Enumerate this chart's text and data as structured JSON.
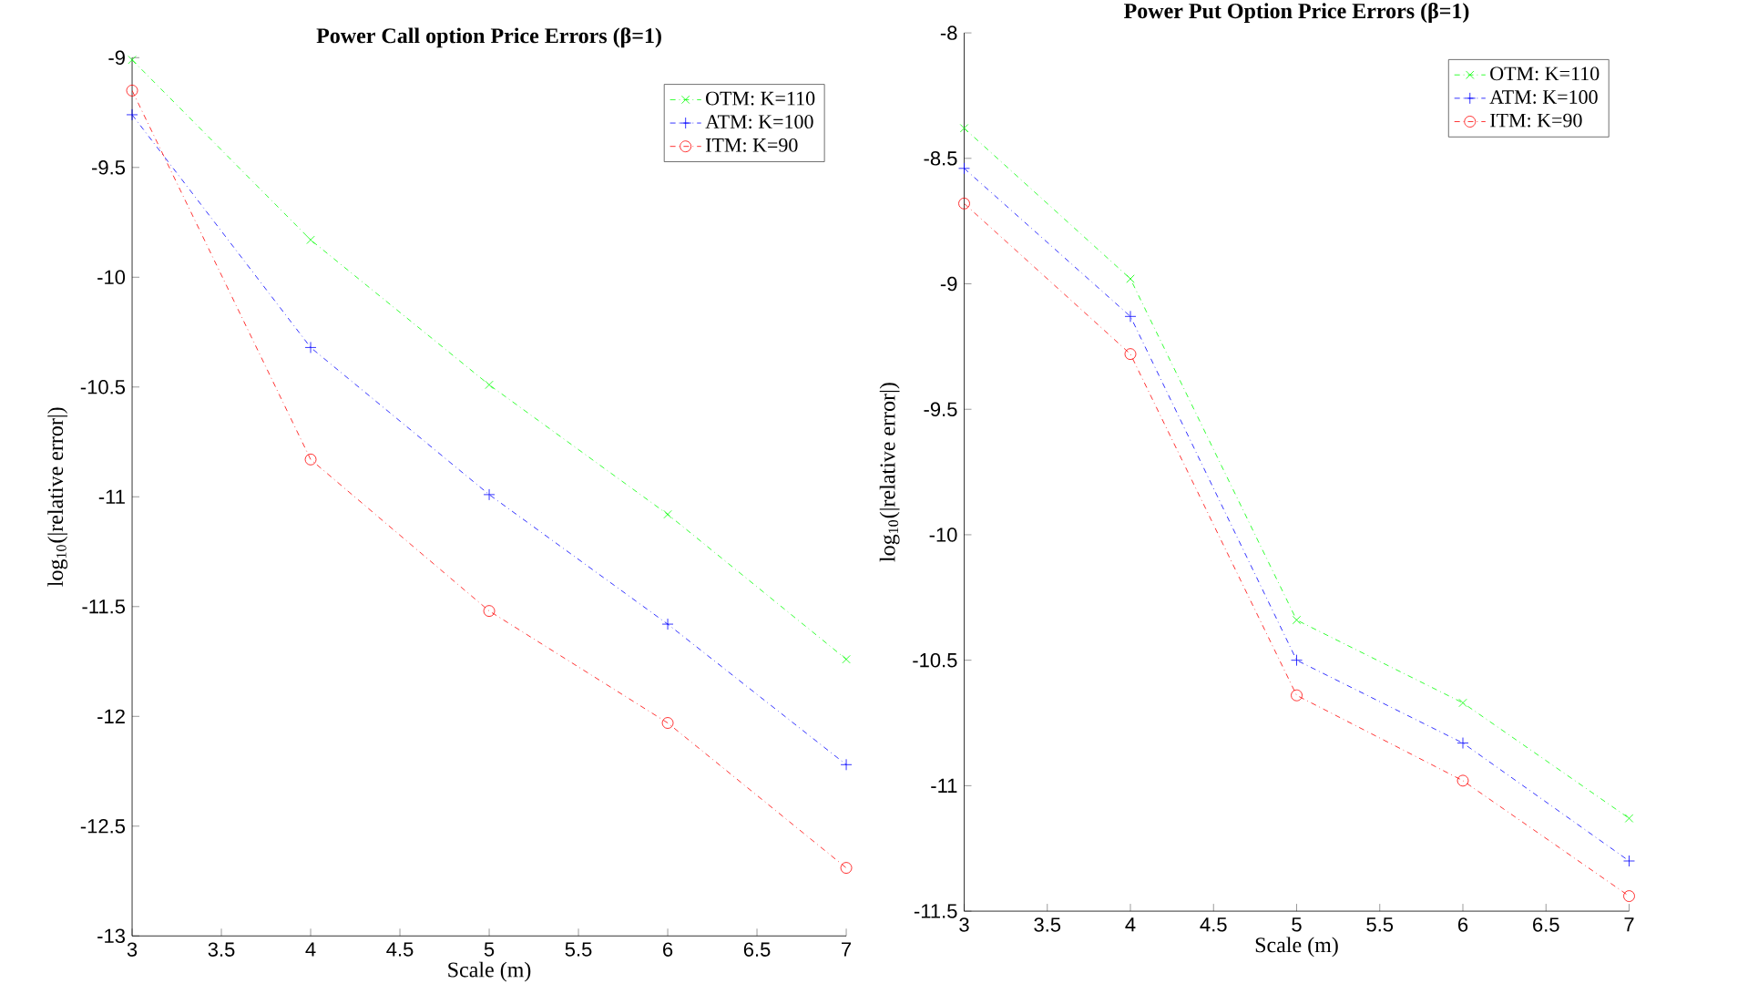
{
  "chart_data": [
    {
      "type": "line",
      "title": "Power Call option Price Errors (β=1)",
      "xlabel": "Scale (m)",
      "ylabel": "log$_{10}$(|relative error|)",
      "x": [
        3,
        4,
        5,
        6,
        7
      ],
      "xlim": [
        3,
        7
      ],
      "xticks": [
        3,
        3.5,
        4,
        4.5,
        5,
        5.5,
        6,
        6.5,
        7
      ],
      "ylim": [
        -13,
        -9
      ],
      "yticks": [
        -13,
        -12.5,
        -12,
        -11.5,
        -11,
        -10.5,
        -10,
        -9.5,
        -9
      ],
      "legend": "top right",
      "line_style": "dashdot",
      "grid": false,
      "series": [
        {
          "name": "OTM: K=110",
          "color": "#00ff00",
          "marker": "cross",
          "values": [
            -9.01,
            -9.83,
            -10.49,
            -11.08,
            -11.74
          ]
        },
        {
          "name": "ATM: K=100",
          "color": "#0000ff",
          "marker": "plus",
          "values": [
            -9.26,
            -10.32,
            -10.99,
            -11.58,
            -12.22
          ]
        },
        {
          "name": "ITM: K=90",
          "color": "#ff0000",
          "marker": "circle",
          "values": [
            -9.15,
            -10.83,
            -11.52,
            -12.03,
            -12.69
          ]
        }
      ]
    },
    {
      "type": "line",
      "title": "Power Put Option Price Errors (β=1)",
      "xlabel": "Scale (m)",
      "ylabel": "log$_{10}$(|relative error|)",
      "x": [
        3,
        4,
        5,
        6,
        7
      ],
      "xlim": [
        3,
        7
      ],
      "xticks": [
        3,
        3.5,
        4,
        4.5,
        5,
        5.5,
        6,
        6.5,
        7
      ],
      "ylim": [
        -11.5,
        -8
      ],
      "yticks": [
        -11.5,
        -11,
        -10.5,
        -10,
        -9.5,
        -9,
        -8.5,
        -8
      ],
      "legend": "top right",
      "line_style": "dashdot",
      "grid": false,
      "series": [
        {
          "name": "OTM: K=110",
          "color": "#00ff00",
          "marker": "cross",
          "values": [
            -8.38,
            -8.98,
            -10.34,
            -10.67,
            -11.13
          ]
        },
        {
          "name": "ATM: K=100",
          "color": "#0000ff",
          "marker": "plus",
          "values": [
            -8.54,
            -9.13,
            -10.5,
            -10.83,
            -11.3
          ]
        },
        {
          "name": "ITM: K=90",
          "color": "#ff0000",
          "marker": "circle",
          "values": [
            -8.68,
            -9.28,
            -10.64,
            -10.98,
            -11.44
          ]
        }
      ]
    }
  ]
}
